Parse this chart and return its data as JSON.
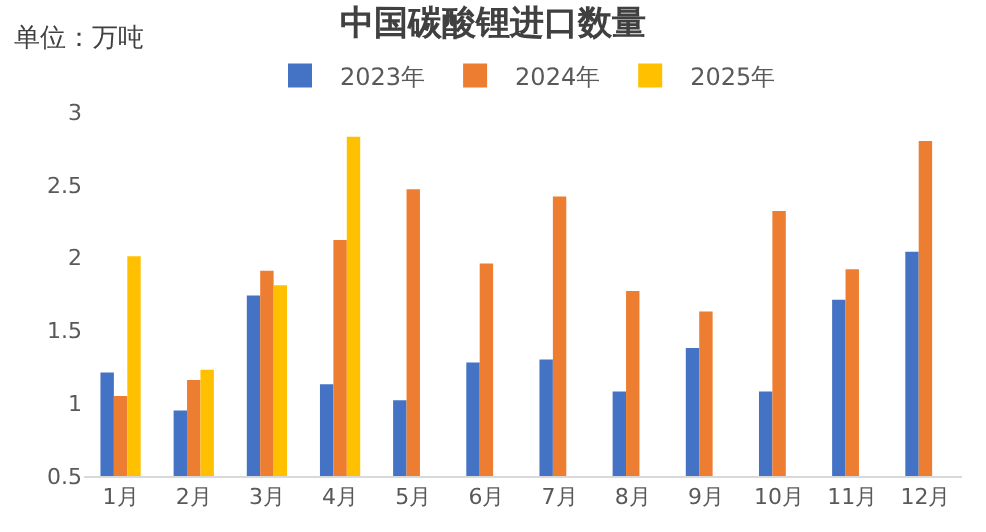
{
  "chart_data": {
    "type": "bar",
    "title": "中国碳酸锂进口数量",
    "annotations": [
      "单位：万吨"
    ],
    "categories": [
      "1月",
      "2月",
      "3月",
      "4月",
      "5月",
      "6月",
      "7月",
      "8月",
      "9月",
      "10月",
      "11月",
      "12月"
    ],
    "series": [
      {
        "name": "2023年",
        "color": "#4472c4",
        "values": [
          1.21,
          0.95,
          1.74,
          1.13,
          1.02,
          1.28,
          1.3,
          1.08,
          1.38,
          1.08,
          1.71,
          2.04
        ]
      },
      {
        "name": "2024年",
        "color": "#ed7d31",
        "values": [
          1.05,
          1.16,
          1.91,
          2.12,
          2.47,
          1.96,
          2.42,
          1.77,
          1.63,
          2.32,
          1.92,
          2.8
        ]
      },
      {
        "name": "2025年",
        "color": "#ffc000",
        "values": [
          2.01,
          1.23,
          1.81,
          2.83,
          null,
          null,
          null,
          null,
          null,
          null,
          null,
          null
        ]
      }
    ],
    "ylim": [
      0.5,
      3
    ],
    "yticks": [
      0.5,
      1,
      1.5,
      2,
      2.5,
      3
    ],
    "grid": false,
    "legend": "top"
  }
}
